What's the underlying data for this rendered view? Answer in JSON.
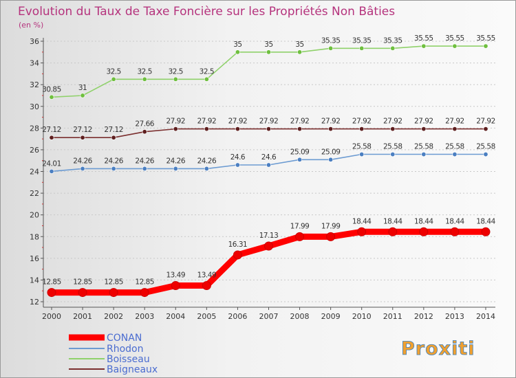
{
  "chart_data": {
    "type": "line",
    "title": "Evolution du Taux de Taxe Foncière sur les Propriétés Non Bâties",
    "subtitle": "(en %)",
    "title_color": "#b5337d",
    "categories": [
      "2000",
      "2001",
      "2002",
      "2003",
      "2004",
      "2005",
      "2006",
      "2007",
      "2008",
      "2009",
      "2010",
      "2011",
      "2012",
      "2013",
      "2014"
    ],
    "ylim": [
      12,
      36
    ],
    "yticks": [
      12,
      14,
      16,
      18,
      20,
      22,
      24,
      26,
      28,
      30,
      32,
      34,
      36
    ],
    "grid": "horizontal-dotted",
    "legend_position": "bottom-left",
    "series": [
      {
        "name": "CONAN",
        "color": "#ff0000",
        "marker_color": "#ee0000",
        "line_style": "thick",
        "values": [
          12.85,
          12.85,
          12.85,
          12.85,
          13.49,
          13.49,
          16.31,
          17.13,
          17.99,
          17.99,
          18.44,
          18.44,
          18.44,
          18.44,
          18.44
        ],
        "labels": [
          "12.85",
          "12.85",
          "12.85",
          "12.85",
          "13.49",
          "13.49",
          "16.31",
          "17.13",
          "17.99",
          "17.99",
          "18.44",
          "18.44",
          "18.44",
          "18.44",
          "18.44"
        ]
      },
      {
        "name": "Rhodon",
        "color": "#6c9bd2",
        "marker_color": "#4b7fc1",
        "line_style": "thin",
        "values": [
          24.01,
          24.26,
          24.26,
          24.26,
          24.26,
          24.26,
          24.6,
          24.6,
          25.09,
          25.09,
          25.58,
          25.58,
          25.58,
          25.58,
          25.58
        ],
        "labels": [
          "24.01",
          "24.26",
          "24.26",
          "24.26",
          "24.26",
          "24.26",
          "24.6",
          "24.6",
          "25.09",
          "25.09",
          "25.58",
          "25.58",
          "25.58",
          "25.58",
          "25.58"
        ]
      },
      {
        "name": "Boisseau",
        "color": "#8fd16a",
        "marker_color": "#6fbf3f",
        "line_style": "thin",
        "values": [
          30.85,
          31,
          32.5,
          32.5,
          32.5,
          32.5,
          35,
          35,
          35,
          35.35,
          35.35,
          35.35,
          35.55,
          35.55,
          35.55
        ],
        "labels": [
          "30.85",
          "31",
          "32.5",
          "32.5",
          "32.5",
          "32.5",
          "35",
          "35",
          "35",
          "35.35",
          "35.35",
          "35.35",
          "35.55",
          "35.55",
          "35.55"
        ]
      },
      {
        "name": "Baigneaux",
        "color": "#7a2e2e",
        "marker_color": "#5e1f1f",
        "line_style": "thin",
        "values": [
          27.12,
          27.12,
          27.12,
          27.66,
          27.92,
          27.92,
          27.92,
          27.92,
          27.92,
          27.92,
          27.92,
          27.92,
          27.92,
          27.92,
          27.92
        ],
        "labels": [
          "27.12",
          "27.12",
          "27.12",
          "27.66",
          "27.92",
          "27.92",
          "27.92",
          "27.92",
          "27.92",
          "27.92",
          "27.92",
          "27.92",
          "27.92",
          "27.92",
          "27.92"
        ]
      }
    ]
  },
  "logo": {
    "text": "Proxiti"
  }
}
